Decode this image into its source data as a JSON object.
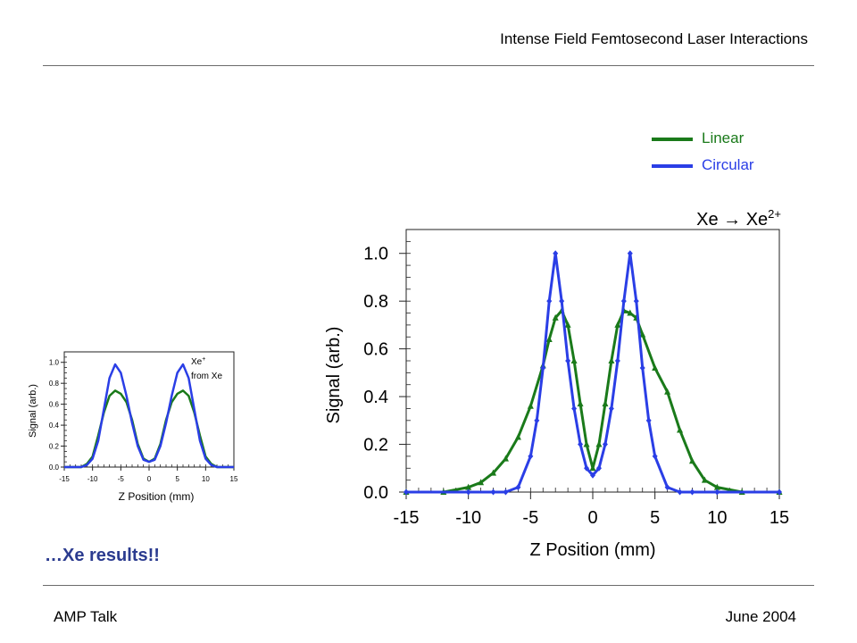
{
  "header": {
    "title": "Intense Field Femtosecond Laser Interactions"
  },
  "footer": {
    "left": "AMP Talk",
    "right": "June 2004"
  },
  "caption": "…Xe results!!",
  "legend": {
    "items": [
      {
        "label": "Linear",
        "color": "#1a7a1a"
      },
      {
        "label": "Circular",
        "color": "#2a3ee6"
      }
    ]
  },
  "chart_data": [
    {
      "type": "line",
      "title_main": "Xe → Xe",
      "title_sup": "2+",
      "xlabel": "Z Position (mm)",
      "ylabel": "Signal (arb.)",
      "xlim": [
        -15,
        15
      ],
      "ylim": [
        0,
        1.1
      ],
      "xticks": [
        "-15",
        "-10",
        "-5",
        "0",
        "5",
        "10",
        "15"
      ],
      "yticks": [
        "0.0",
        "0.2",
        "0.4",
        "0.6",
        "0.8",
        "1.0"
      ],
      "grid": false,
      "series": [
        {
          "name": "Linear",
          "color": "#1a7a1a",
          "marker": "triangle",
          "x": [
            -15,
            -12,
            -10,
            -9,
            -8,
            -7,
            -6,
            -5,
            -4,
            -3.5,
            -3,
            -2.5,
            -2,
            -1.5,
            -1,
            -0.5,
            0,
            0.5,
            1,
            1.5,
            2,
            2.5,
            3,
            3.5,
            4,
            5,
            6,
            7,
            8,
            9,
            10,
            12,
            15
          ],
          "y": [
            0.0,
            0.0,
            0.02,
            0.04,
            0.08,
            0.14,
            0.23,
            0.36,
            0.53,
            0.64,
            0.73,
            0.76,
            0.7,
            0.55,
            0.37,
            0.2,
            0.1,
            0.2,
            0.37,
            0.55,
            0.7,
            0.76,
            0.75,
            0.73,
            0.66,
            0.52,
            0.42,
            0.26,
            0.13,
            0.05,
            0.02,
            0.0,
            0.0
          ]
        },
        {
          "name": "Circular",
          "color": "#2a3ee6",
          "marker": "diamond",
          "x": [
            -15,
            -10,
            -8,
            -7,
            -6,
            -5,
            -4.5,
            -4,
            -3.5,
            -3,
            -2.5,
            -2,
            -1.5,
            -1,
            -0.5,
            0,
            0.5,
            1,
            1.5,
            2,
            2.5,
            3,
            3.5,
            4,
            4.5,
            5,
            6,
            7,
            8,
            10,
            15
          ],
          "y": [
            0.0,
            0.0,
            0.0,
            0.0,
            0.02,
            0.15,
            0.3,
            0.52,
            0.8,
            1.0,
            0.8,
            0.55,
            0.35,
            0.2,
            0.1,
            0.07,
            0.1,
            0.2,
            0.35,
            0.55,
            0.8,
            1.0,
            0.8,
            0.52,
            0.3,
            0.15,
            0.02,
            0.0,
            0.0,
            0.0,
            0.0
          ]
        }
      ]
    },
    {
      "type": "line",
      "title_main": "Xe",
      "title_sup": "+",
      "title_line2": "from Xe",
      "xlabel": "Z Position (mm)",
      "ylabel": "Signal (arb.)",
      "xlim": [
        -15,
        15
      ],
      "ylim": [
        0,
        1.1
      ],
      "xticks": [
        "-15",
        "-10",
        "-5",
        "0",
        "5",
        "10",
        "15"
      ],
      "yticks": [
        "0.0",
        "0.2",
        "0.4",
        "0.6",
        "0.8",
        "1.0"
      ],
      "grid": false,
      "series": [
        {
          "name": "Linear",
          "color": "#1a7a1a",
          "x": [
            -15,
            -12,
            -11,
            -10,
            -9,
            -8,
            -7,
            -6,
            -5,
            -4,
            -3,
            -2,
            -1,
            0,
            1,
            2,
            3,
            4,
            5,
            6,
            7,
            8,
            9,
            10,
            11,
            12,
            15
          ],
          "y": [
            0.0,
            0.0,
            0.03,
            0.1,
            0.3,
            0.52,
            0.68,
            0.73,
            0.7,
            0.62,
            0.45,
            0.22,
            0.08,
            0.05,
            0.08,
            0.22,
            0.45,
            0.62,
            0.7,
            0.73,
            0.68,
            0.52,
            0.3,
            0.1,
            0.03,
            0.0,
            0.0
          ]
        },
        {
          "name": "Circular",
          "color": "#2a3ee6",
          "x": [
            -15,
            -12,
            -11,
            -10,
            -9,
            -8,
            -7,
            -6,
            -5,
            -4,
            -3,
            -2,
            -1,
            0,
            1,
            2,
            3,
            4,
            5,
            6,
            7,
            8,
            9,
            10,
            11,
            12,
            15
          ],
          "y": [
            0.0,
            0.0,
            0.02,
            0.08,
            0.25,
            0.55,
            0.85,
            0.98,
            0.9,
            0.68,
            0.42,
            0.2,
            0.07,
            0.05,
            0.07,
            0.2,
            0.42,
            0.68,
            0.9,
            0.98,
            0.85,
            0.55,
            0.25,
            0.08,
            0.02,
            0.0,
            0.0
          ]
        }
      ]
    }
  ]
}
